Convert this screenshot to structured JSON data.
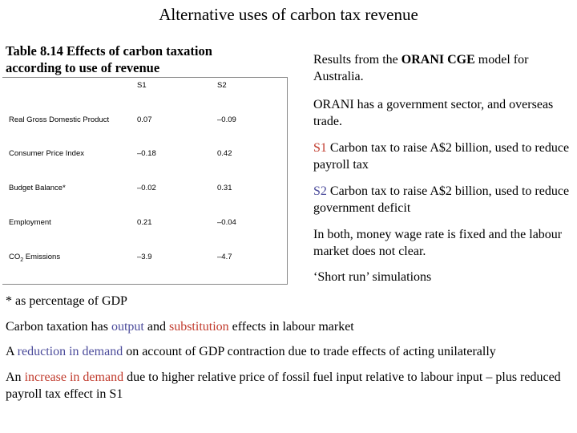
{
  "slide": {
    "title": "Alternative uses of carbon tax revenue"
  },
  "table": {
    "caption_line1": "Table 8.14 Effects of carbon taxation",
    "caption_line2": "according to use of revenue",
    "columns": [
      "",
      "S1",
      "S2"
    ],
    "rows": [
      {
        "label": "Real Gross Domestic Product",
        "s1": "0.07",
        "s2": "–0.09"
      },
      {
        "label": "Consumer Price Index",
        "s1": "–0.18",
        "s2": "0.42"
      },
      {
        "label": "Budget Balance*",
        "s1": "–0.02",
        "s2": "0.31"
      },
      {
        "label": "Employment",
        "s1": "0.21",
        "s2": "–0.04"
      },
      {
        "label_main": "CO",
        "label_sub": "2",
        "label_rest": " Emissions",
        "s1": "–3.9",
        "s2": "–4.7"
      }
    ],
    "footnote": "* as percentage of GDP"
  },
  "notes": {
    "results_pre": "Results from the ",
    "results_bold": "ORANI CGE",
    "results_post": " model for Australia.",
    "orani": "ORANI has a government sector, and overseas trade.",
    "s1_tag": "S1",
    "s1_text": " Carbon tax to raise A$2 billion, used to reduce payroll tax",
    "s2_tag": "S2",
    "s2_text": " Carbon tax to raise A$2 billion, used to reduce government deficit",
    "both": "In both, money wage rate is fixed and the labour market does not clear.",
    "short_run": "‘Short run’ simulations"
  },
  "bottom": {
    "p1_a": "Carbon taxation has ",
    "p1_output": "output",
    "p1_b": " and ",
    "p1_subst": "substitution",
    "p1_c": " effects in labour market",
    "p2_a": "A ",
    "p2_red": "reduction in demand",
    "p2_b": " on account of GDP contraction due to trade effects of acting unilaterally",
    "p3_a": "An ",
    "p3_inc": "increase in demand",
    "p3_b": " due to higher relative price of fossil fuel input relative to labour input – plus reduced payroll tax effect in S1"
  },
  "colors": {
    "blue_accent": "#4a4a9a",
    "red_accent": "#c0392b"
  }
}
